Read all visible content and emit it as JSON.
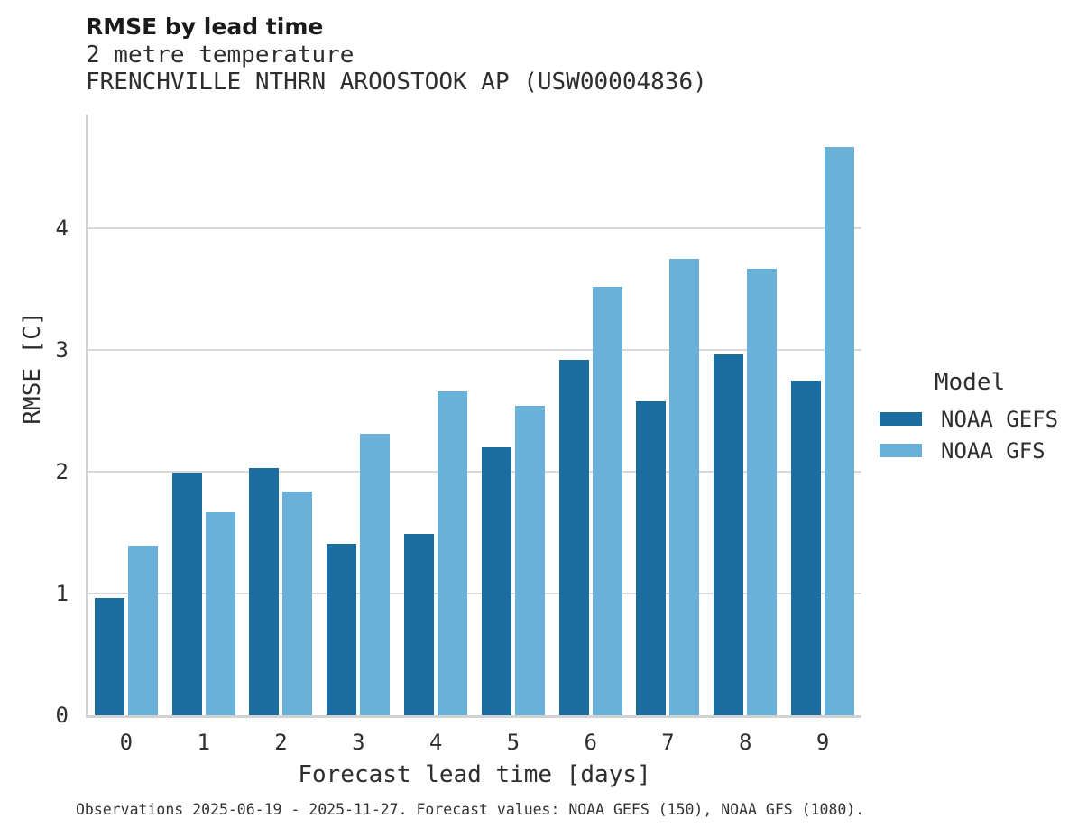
{
  "header": {
    "title": "RMSE by lead time",
    "subtitle": "2 metre temperature",
    "station": "FRENCHVILLE NTHRN AROOSTOOK AP (USW00004836)"
  },
  "legend": {
    "title": "Model",
    "items": [
      {
        "label": "NOAA GEFS",
        "color": "#1a6d9e"
      },
      {
        "label": "NOAA GFS",
        "color": "#6ab1d9"
      }
    ]
  },
  "footer": {
    "text": "Observations 2025-06-19 - 2025-11-27. Forecast values: NOAA GEFS (150), NOAA GFS (1080)."
  },
  "colors": {
    "gefs": "#1a6d9e",
    "gfs": "#6ab1d9",
    "gridline": "#d9d9d9",
    "axis": "#d2d2d2"
  },
  "chart_data": {
    "type": "bar",
    "title": "RMSE by lead time",
    "subtitle": "2 metre temperature",
    "station": "FRENCHVILLE NTHRN AROOSTOOK AP (USW00004836)",
    "xlabel": "Forecast lead time [days]",
    "ylabel": "RMSE [C]",
    "categories": [
      "0",
      "1",
      "2",
      "3",
      "4",
      "5",
      "6",
      "7",
      "8",
      "9"
    ],
    "series": [
      {
        "name": "NOAA GEFS",
        "color": "#1a6d9e",
        "values": [
          0.96,
          1.99,
          2.03,
          1.41,
          1.49,
          2.2,
          2.92,
          2.58,
          2.96,
          2.75
        ]
      },
      {
        "name": "NOAA GFS",
        "color": "#6ab1d9",
        "values": [
          1.39,
          1.67,
          1.84,
          2.31,
          2.66,
          2.54,
          3.52,
          3.75,
          3.67,
          4.67
        ]
      }
    ],
    "ylim": [
      0,
      4.93
    ],
    "yticks": [
      0,
      1,
      2,
      3,
      4
    ],
    "grid": "horizontal",
    "legend_position": "right",
    "legend_title": "Model"
  }
}
